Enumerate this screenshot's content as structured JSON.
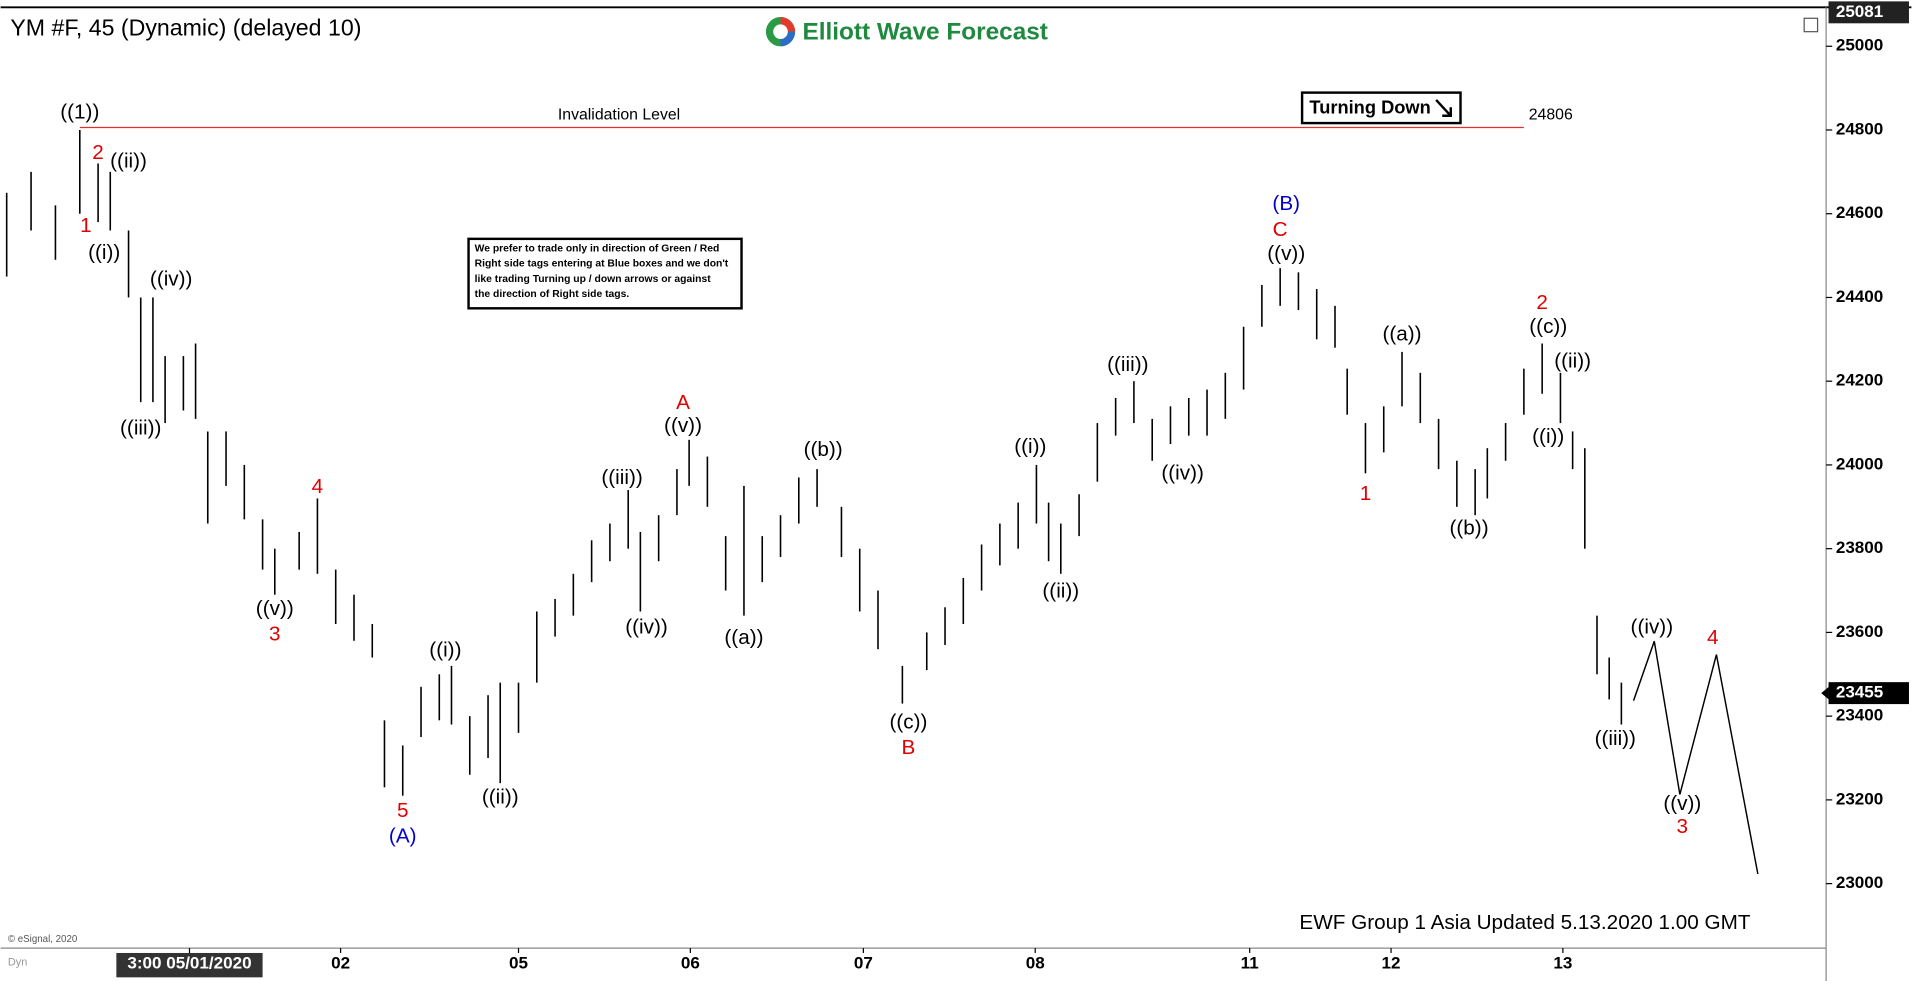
{
  "chart_data": {
    "type": "ohlc",
    "title": "YM #F, 45 (Dynamic) (delayed 10)",
    "brand": "Elliott Wave Forecast",
    "badge": "Turning Down",
    "note": [
      "We prefer to trade only in direction of Green / Red",
      "Right side tags entering at Blue boxes and we don't",
      "like trading Turning up / down arrows or against",
      "the direction of Right side tags."
    ],
    "footer": "EWF Group 1 Asia Updated 5.13.2020 1.00 GMT",
    "copyright": "© eSignal, 2020",
    "mode": "Dyn",
    "bar_color": "#000000",
    "x": [
      1,
      5,
      9,
      13,
      16,
      18,
      21,
      23,
      25,
      27,
      30,
      32,
      34,
      37,
      40,
      43,
      45,
      49,
      52,
      55,
      58,
      61,
      63,
      66,
      69,
      72,
      74,
      77,
      80,
      82,
      85,
      88,
      91,
      94,
      97,
      100,
      103,
      105,
      108,
      111,
      113,
      116,
      119,
      122,
      125,
      128,
      131,
      134,
      138,
      141,
      144,
      148,
      152,
      155,
      158,
      161,
      164,
      167,
      170,
      172,
      174,
      177,
      180,
      183,
      186,
      189,
      192,
      195,
      198,
      201,
      204,
      207,
      210,
      213,
      216,
      219,
      221,
      224,
      227,
      230,
      233,
      236,
      239,
      242,
      244,
      247,
      250,
      253,
      256,
      258,
      260,
      262,
      264,
      266
    ],
    "high": [
      24650,
      24700,
      24620,
      24800,
      24720,
      24700,
      24560,
      24400,
      24400,
      24260,
      24260,
      24290,
      24080,
      24080,
      24000,
      23870,
      23800,
      23840,
      23920,
      23750,
      23690,
      23620,
      23390,
      23330,
      23470,
      23500,
      23520,
      23400,
      23450,
      23480,
      23480,
      23650,
      23680,
      23740,
      23820,
      23860,
      23940,
      23840,
      23880,
      23990,
      24060,
      24020,
      23830,
      23950,
      23830,
      23880,
      23970,
      23990,
      23900,
      23800,
      23700,
      23520,
      23600,
      23660,
      23730,
      23810,
      23860,
      23910,
      24000,
      23910,
      23860,
      23930,
      24100,
      24160,
      24200,
      24110,
      24140,
      24160,
      24180,
      24220,
      24330,
      24430,
      24470,
      24460,
      24420,
      24380,
      24230,
      24100,
      24140,
      24270,
      24220,
      24110,
      24010,
      23990,
      24040,
      24100,
      24230,
      24290,
      24220,
      24080,
      24040,
      23640,
      23540,
      23480
    ],
    "low": [
      24450,
      24560,
      24490,
      24600,
      24580,
      24560,
      24400,
      24150,
      24150,
      24100,
      24130,
      24110,
      23860,
      23950,
      23870,
      23750,
      23690,
      23750,
      23740,
      23620,
      23580,
      23540,
      23230,
      23210,
      23350,
      23390,
      23380,
      23260,
      23300,
      23240,
      23360,
      23480,
      23590,
      23640,
      23720,
      23770,
      23800,
      23650,
      23770,
      23880,
      23950,
      23900,
      23700,
      23640,
      23720,
      23780,
      23860,
      23900,
      23780,
      23650,
      23560,
      23430,
      23510,
      23570,
      23620,
      23700,
      23760,
      23800,
      23860,
      23770,
      23740,
      23830,
      23960,
      24070,
      24100,
      24010,
      24050,
      24070,
      24070,
      24110,
      24180,
      24330,
      24380,
      24370,
      24300,
      24280,
      24120,
      23980,
      24030,
      24140,
      24100,
      23990,
      23900,
      23880,
      23920,
      24010,
      24120,
      24170,
      24100,
      23990,
      23800,
      23500,
      23440,
      23380
    ],
    "xlim": [
      0,
      299.6
    ],
    "ylim": [
      22846,
      25093
    ],
    "yticks": [
      23000,
      23200,
      23400,
      23600,
      23800,
      24000,
      24200,
      24400,
      24600,
      24800,
      25000
    ],
    "xticks": [
      {
        "value": 31,
        "label": "3:00 05/01/2020"
      },
      {
        "value": 55.8,
        "label": "02"
      },
      {
        "value": 85,
        "label": "05"
      },
      {
        "value": 113.2,
        "label": "06"
      },
      {
        "value": 141.6,
        "label": "07"
      },
      {
        "value": 169.8,
        "label": "08"
      },
      {
        "value": 205,
        "label": "11"
      },
      {
        "value": 228.2,
        "label": "12"
      },
      {
        "value": 256.4,
        "label": "13"
      }
    ],
    "top_price": 25081,
    "last_price": 23455,
    "invalidation": {
      "label": "Invalidation Level",
      "value": 24806,
      "x": [
        13,
        250
      ],
      "color": "#e03030"
    },
    "projection": {
      "x": [
        268,
        271.4,
        275.6,
        281.6,
        288.4
      ],
      "y": [
        23437,
        23579,
        23213,
        23547,
        23023
      ],
      "color": "#000000"
    },
    "annotations": [
      {
        "text": "((1))",
        "x": 13,
        "y": 24840,
        "color": "#000000"
      },
      {
        "text": "2",
        "x": 16,
        "y": 24744,
        "color": "#e00000"
      },
      {
        "text": "((ii))",
        "x": 21,
        "y": 24723,
        "color": "#000000"
      },
      {
        "text": "1",
        "x": 14,
        "y": 24569,
        "color": "#e00000"
      },
      {
        "text": "((i))",
        "x": 17,
        "y": 24505,
        "color": "#000000"
      },
      {
        "text": "((iv))",
        "x": 28,
        "y": 24441,
        "color": "#000000"
      },
      {
        "text": "((iii))",
        "x": 23,
        "y": 24086,
        "color": "#000000"
      },
      {
        "text": "4",
        "x": 52,
        "y": 23946,
        "color": "#e00000"
      },
      {
        "text": "((v))",
        "x": 45,
        "y": 23655,
        "color": "#000000"
      },
      {
        "text": "3",
        "x": 45,
        "y": 23594,
        "color": "#e00000"
      },
      {
        "text": "5",
        "x": 66,
        "y": 23172,
        "color": "#e00000"
      },
      {
        "text": "(A)",
        "x": 66,
        "y": 23111,
        "color": "#0000cc"
      },
      {
        "text": "((i))",
        "x": 73,
        "y": 23556,
        "color": "#000000"
      },
      {
        "text": "((ii))",
        "x": 82,
        "y": 23204,
        "color": "#000000"
      },
      {
        "text": "((iii))",
        "x": 102,
        "y": 23967,
        "color": "#000000"
      },
      {
        "text": "((iv))",
        "x": 106,
        "y": 23611,
        "color": "#000000"
      },
      {
        "text": "A",
        "x": 112,
        "y": 24147,
        "color": "#e00000"
      },
      {
        "text": "((v))",
        "x": 112,
        "y": 24092,
        "color": "#000000"
      },
      {
        "text": "((a))",
        "x": 122,
        "y": 23585,
        "color": "#000000"
      },
      {
        "text": "((b))",
        "x": 135,
        "y": 24034,
        "color": "#000000"
      },
      {
        "text": "((c))",
        "x": 149,
        "y": 23384,
        "color": "#000000"
      },
      {
        "text": "B",
        "x": 149,
        "y": 23323,
        "color": "#e00000"
      },
      {
        "text": "((i))",
        "x": 169,
        "y": 24042,
        "color": "#000000"
      },
      {
        "text": "((ii))",
        "x": 174,
        "y": 23696,
        "color": "#000000"
      },
      {
        "text": "((iii))",
        "x": 185,
        "y": 24237,
        "color": "#000000"
      },
      {
        "text": "((iv))",
        "x": 194,
        "y": 23978,
        "color": "#000000"
      },
      {
        "text": "(B)",
        "x": 211,
        "y": 24622,
        "color": "#0000cc"
      },
      {
        "text": "C",
        "x": 210,
        "y": 24560,
        "color": "#e00000"
      },
      {
        "text": "((v))",
        "x": 211,
        "y": 24502,
        "color": "#000000"
      },
      {
        "text": "1",
        "x": 224,
        "y": 23929,
        "color": "#e00000"
      },
      {
        "text": "((a))",
        "x": 230,
        "y": 24310,
        "color": "#000000"
      },
      {
        "text": "((b))",
        "x": 241,
        "y": 23847,
        "color": "#000000"
      },
      {
        "text": "2",
        "x": 253,
        "y": 24386,
        "color": "#e00000"
      },
      {
        "text": "((c))",
        "x": 254,
        "y": 24328,
        "color": "#000000"
      },
      {
        "text": "((ii))",
        "x": 258,
        "y": 24246,
        "color": "#000000"
      },
      {
        "text": "((i))",
        "x": 254,
        "y": 24066,
        "color": "#000000"
      },
      {
        "text": "((iii))",
        "x": 265,
        "y": 23344,
        "color": "#000000"
      },
      {
        "text": "((iv))",
        "x": 271,
        "y": 23611,
        "color": "#000000"
      },
      {
        "text": "((v))",
        "x": 276,
        "y": 23189,
        "color": "#000000"
      },
      {
        "text": "3",
        "x": 276,
        "y": 23134,
        "color": "#e00000"
      },
      {
        "text": "4",
        "x": 281,
        "y": 23585,
        "color": "#e00000"
      }
    ]
  }
}
